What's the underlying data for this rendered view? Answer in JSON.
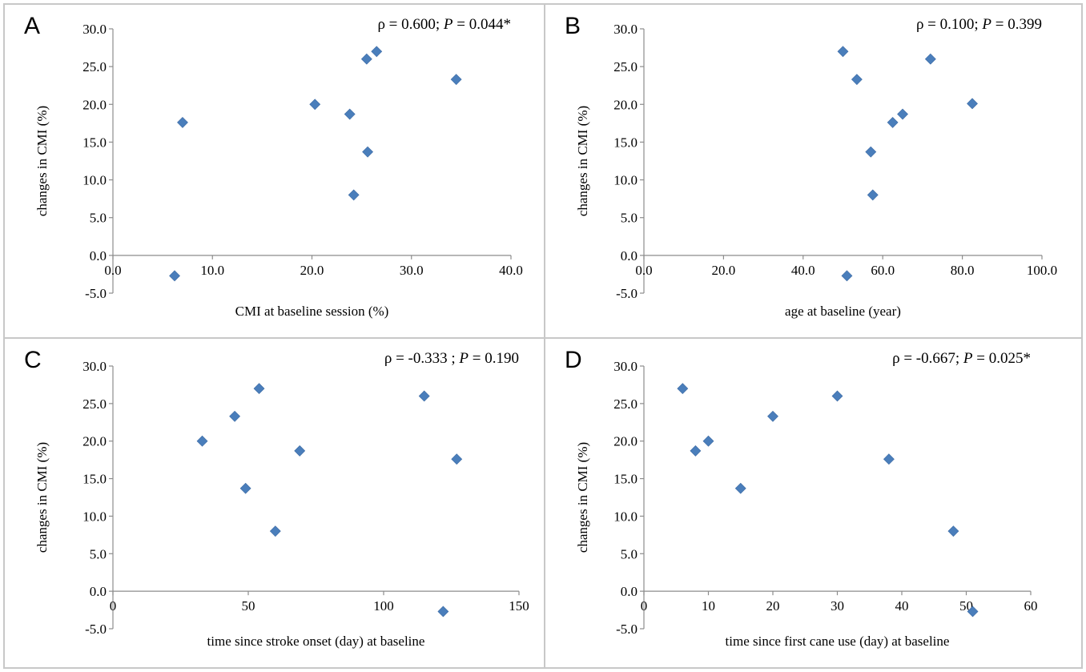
{
  "chart_data": [
    {
      "type": "scatter",
      "panel_label": "A",
      "stat_label": "ρ = 0.600; ",
      "stat_p_symbol": "P",
      "stat_p_value": " = 0.044*",
      "xlabel": "CMI at baseline session (%)",
      "ylabel": "changes in CMI (%)",
      "xlim": [
        0,
        40
      ],
      "ylim": [
        -5,
        30
      ],
      "xticks": [
        0,
        10,
        20,
        30,
        40
      ],
      "xtick_labels": [
        "0.0",
        "10.0",
        "20.0",
        "30.0",
        "40.0"
      ],
      "yticks": [
        30,
        25,
        20,
        15,
        10,
        5,
        0,
        -5
      ],
      "ytick_labels": [
        "30.0",
        "25.0",
        "20.0",
        "15.0",
        "10.0",
        "5.0",
        "0.0",
        "-5.0"
      ],
      "color": "#4a7ebb",
      "points": [
        {
          "x": 6.2,
          "y": -2.7
        },
        {
          "x": 7.0,
          "y": 17.6
        },
        {
          "x": 20.3,
          "y": 20.0
        },
        {
          "x": 23.8,
          "y": 18.7
        },
        {
          "x": 25.5,
          "y": 26.0
        },
        {
          "x": 26.5,
          "y": 27.0
        },
        {
          "x": 25.6,
          "y": 13.7
        },
        {
          "x": 24.2,
          "y": 8.0
        },
        {
          "x": 34.5,
          "y": 23.3
        }
      ]
    },
    {
      "type": "scatter",
      "panel_label": "B",
      "stat_label": "ρ = 0.100; ",
      "stat_p_symbol": "P",
      "stat_p_value": " = 0.399",
      "xlabel": "age at baseline (year)",
      "ylabel": "changes in CMI (%)",
      "xlim": [
        0,
        100
      ],
      "ylim": [
        -5,
        30
      ],
      "xticks": [
        0,
        20,
        40,
        60,
        80,
        100
      ],
      "xtick_labels": [
        "0.0",
        "20.0",
        "40.0",
        "60.0",
        "80.0",
        "100.0"
      ],
      "yticks": [
        30,
        25,
        20,
        15,
        10,
        5,
        0,
        -5
      ],
      "ytick_labels": [
        "30.0",
        "25.0",
        "20.0",
        "15.0",
        "10.0",
        "5.0",
        "0.0",
        "-5.0"
      ],
      "color": "#4a7ebb",
      "points": [
        {
          "x": 51.0,
          "y": -2.7
        },
        {
          "x": 50.0,
          "y": 27.0
        },
        {
          "x": 53.5,
          "y": 23.3
        },
        {
          "x": 72.0,
          "y": 26.0
        },
        {
          "x": 82.5,
          "y": 20.1
        },
        {
          "x": 65.0,
          "y": 18.7
        },
        {
          "x": 62.5,
          "y": 17.6
        },
        {
          "x": 57.0,
          "y": 13.7
        },
        {
          "x": 57.5,
          "y": 8.0
        }
      ]
    },
    {
      "type": "scatter",
      "panel_label": "C",
      "stat_label": "ρ = -0.333 ; ",
      "stat_p_symbol": "P",
      "stat_p_value": " = 0.190",
      "xlabel": "time since stroke onset (day) at baseline",
      "ylabel": "changes in CMI (%)",
      "xlim": [
        0,
        150
      ],
      "ylim": [
        -5,
        30
      ],
      "xticks": [
        0,
        50,
        100,
        150
      ],
      "xtick_labels": [
        "0",
        "50",
        "100",
        "150"
      ],
      "yticks": [
        30,
        25,
        20,
        15,
        10,
        5,
        0,
        -5
      ],
      "ytick_labels": [
        "30.0",
        "25.0",
        "20.0",
        "15.0",
        "10.0",
        "5.0",
        "0.0",
        "-5.0"
      ],
      "color": "#4a7ebb",
      "points": [
        {
          "x": 33,
          "y": 20.0
        },
        {
          "x": 45,
          "y": 23.3
        },
        {
          "x": 54,
          "y": 27.0
        },
        {
          "x": 49,
          "y": 13.7
        },
        {
          "x": 60,
          "y": 8.0
        },
        {
          "x": 69,
          "y": 18.7
        },
        {
          "x": 115,
          "y": 26.0
        },
        {
          "x": 127,
          "y": 17.6
        },
        {
          "x": 122,
          "y": -2.7
        }
      ]
    },
    {
      "type": "scatter",
      "panel_label": "D",
      "stat_label": "ρ = -0.667; ",
      "stat_p_symbol": "P",
      "stat_p_value": " = 0.025*",
      "xlabel": "time since first cane use (day) at baseline",
      "ylabel": "changes in CMI (%)",
      "xlim": [
        0,
        60
      ],
      "ylim": [
        -5,
        30
      ],
      "xticks": [
        0,
        10,
        20,
        30,
        40,
        50,
        60
      ],
      "xtick_labels": [
        "0",
        "10",
        "20",
        "30",
        "40",
        "50",
        "60"
      ],
      "yticks": [
        30,
        25,
        20,
        15,
        10,
        5,
        0,
        -5
      ],
      "ytick_labels": [
        "30.0",
        "25.0",
        "20.0",
        "15.0",
        "10.0",
        "5.0",
        "0.0",
        "-5.0"
      ],
      "color": "#4a7ebb",
      "points": [
        {
          "x": 6,
          "y": 27.0
        },
        {
          "x": 8,
          "y": 18.7
        },
        {
          "x": 10,
          "y": 20.0
        },
        {
          "x": 15,
          "y": 13.7
        },
        {
          "x": 20,
          "y": 23.3
        },
        {
          "x": 30,
          "y": 26.0
        },
        {
          "x": 38,
          "y": 17.6
        },
        {
          "x": 48,
          "y": 8.0
        },
        {
          "x": 51,
          "y": -2.7
        }
      ]
    }
  ]
}
